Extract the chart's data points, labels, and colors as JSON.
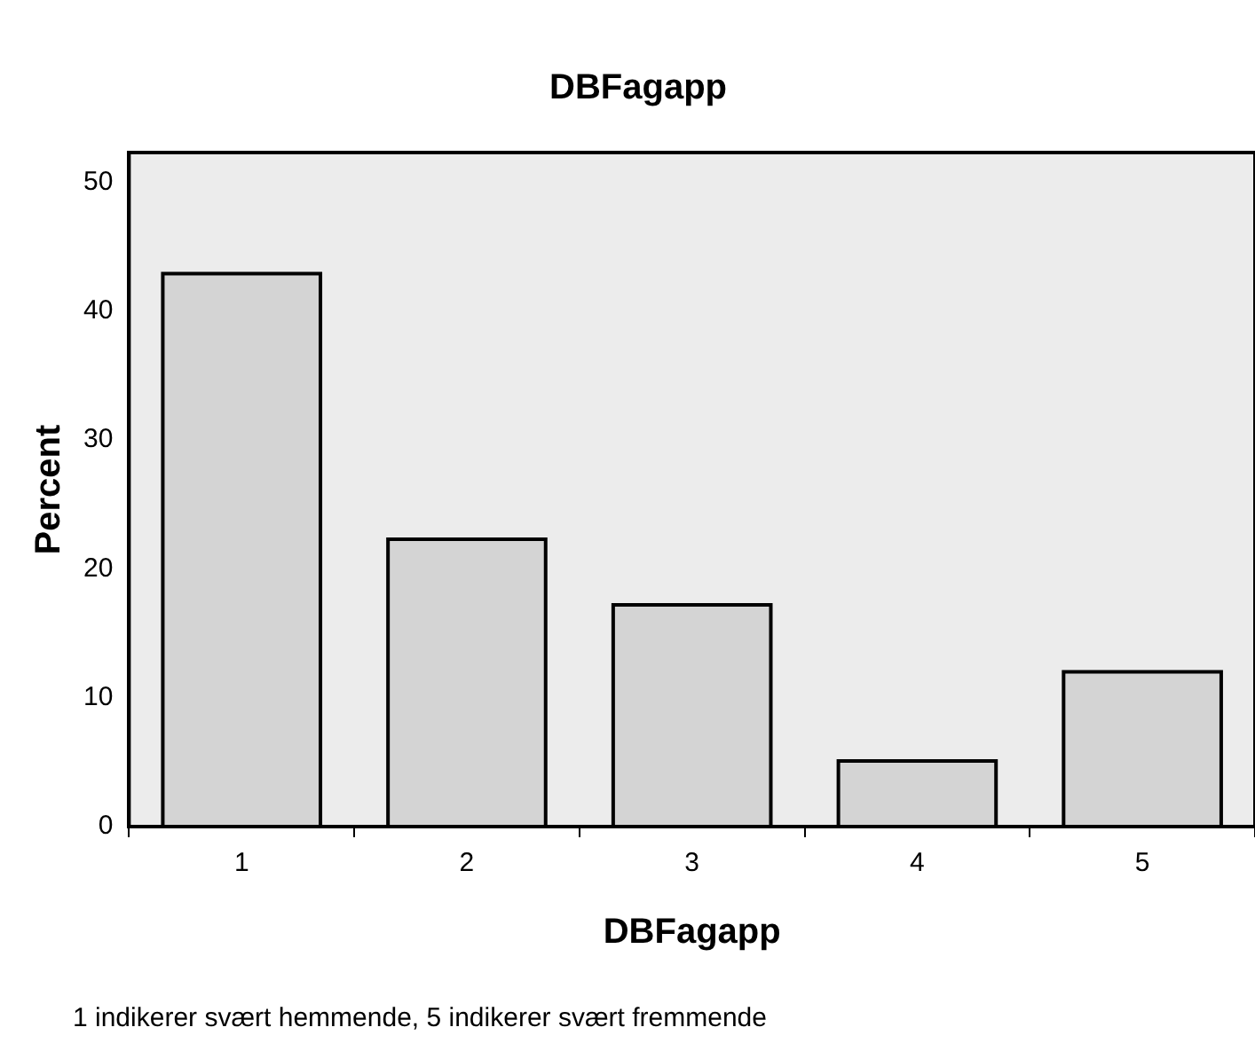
{
  "chart_data": {
    "type": "bar",
    "title": "DBFagapp",
    "xlabel": "DBFagapp",
    "ylabel": "Percent",
    "categories": [
      "1",
      "2",
      "3",
      "4",
      "5"
    ],
    "values": [
      42.9,
      22.3,
      17.2,
      5.1,
      12
    ],
    "color": "#d4d4d4",
    "ylim": [
      0,
      52.3
    ],
    "yticks": [
      0,
      10,
      20,
      30,
      40,
      50
    ],
    "grid": false,
    "legend": false,
    "annotations": [
      "1 indikerer svært hemmende, 5 indikerer svært fremmende"
    ]
  }
}
